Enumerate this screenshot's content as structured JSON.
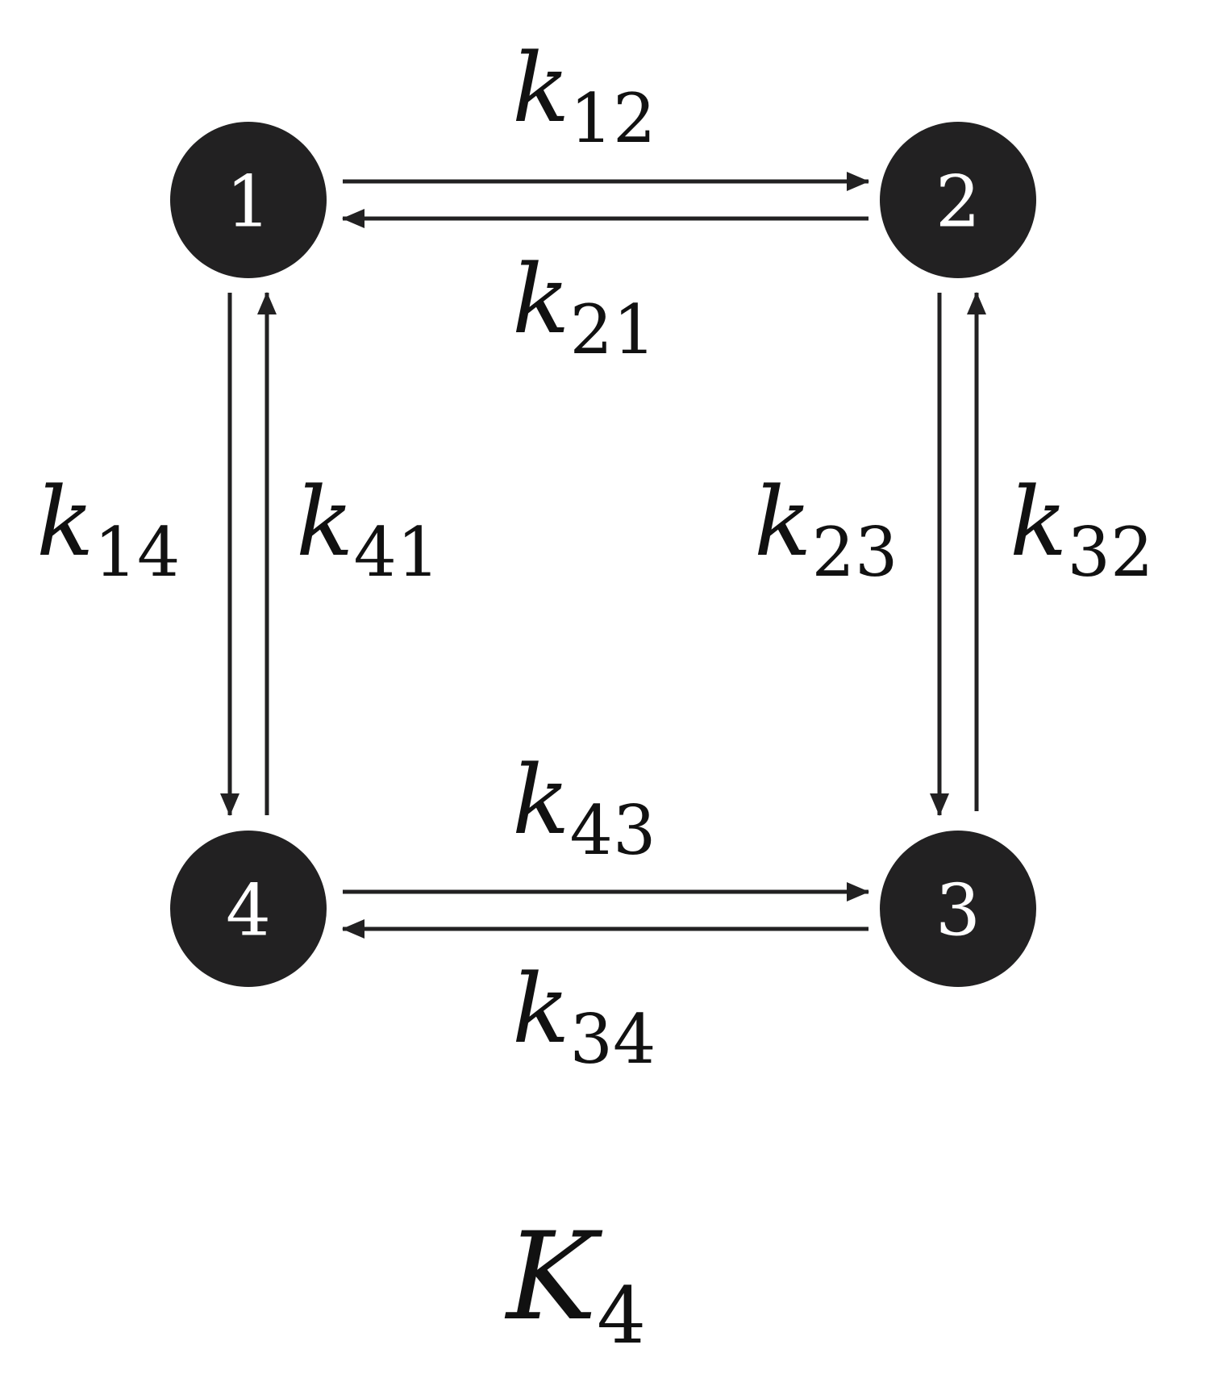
{
  "nodes": [
    {
      "id": "1",
      "label": "1"
    },
    {
      "id": "2",
      "label": "2"
    },
    {
      "id": "3",
      "label": "3"
    },
    {
      "id": "4",
      "label": "4"
    }
  ],
  "rates": {
    "k12": {
      "symbol": "k",
      "subscript": "12"
    },
    "k21": {
      "symbol": "k",
      "subscript": "21"
    },
    "k14": {
      "symbol": "k",
      "subscript": "14"
    },
    "k41": {
      "symbol": "k",
      "subscript": "41"
    },
    "k23": {
      "symbol": "k",
      "subscript": "23"
    },
    "k32": {
      "symbol": "k",
      "subscript": "32"
    },
    "k43": {
      "symbol": "k",
      "subscript": "43"
    },
    "k34": {
      "symbol": "k",
      "subscript": "34"
    }
  },
  "edges": [
    {
      "from": "1",
      "to": "2",
      "rate": "k12"
    },
    {
      "from": "2",
      "to": "1",
      "rate": "k21"
    },
    {
      "from": "1",
      "to": "4",
      "rate": "k14"
    },
    {
      "from": "4",
      "to": "1",
      "rate": "k41"
    },
    {
      "from": "2",
      "to": "3",
      "rate": "k23"
    },
    {
      "from": "3",
      "to": "2",
      "rate": "k32"
    },
    {
      "from": "4",
      "to": "3",
      "rate": "k43"
    },
    {
      "from": "3",
      "to": "4",
      "rate": "k34"
    }
  ],
  "caption": {
    "symbol": "K",
    "subscript": "4"
  },
  "colors": {
    "node_fill": "#222122",
    "node_text": "#ffffff",
    "arrow": "#222122",
    "text": "#111111"
  }
}
